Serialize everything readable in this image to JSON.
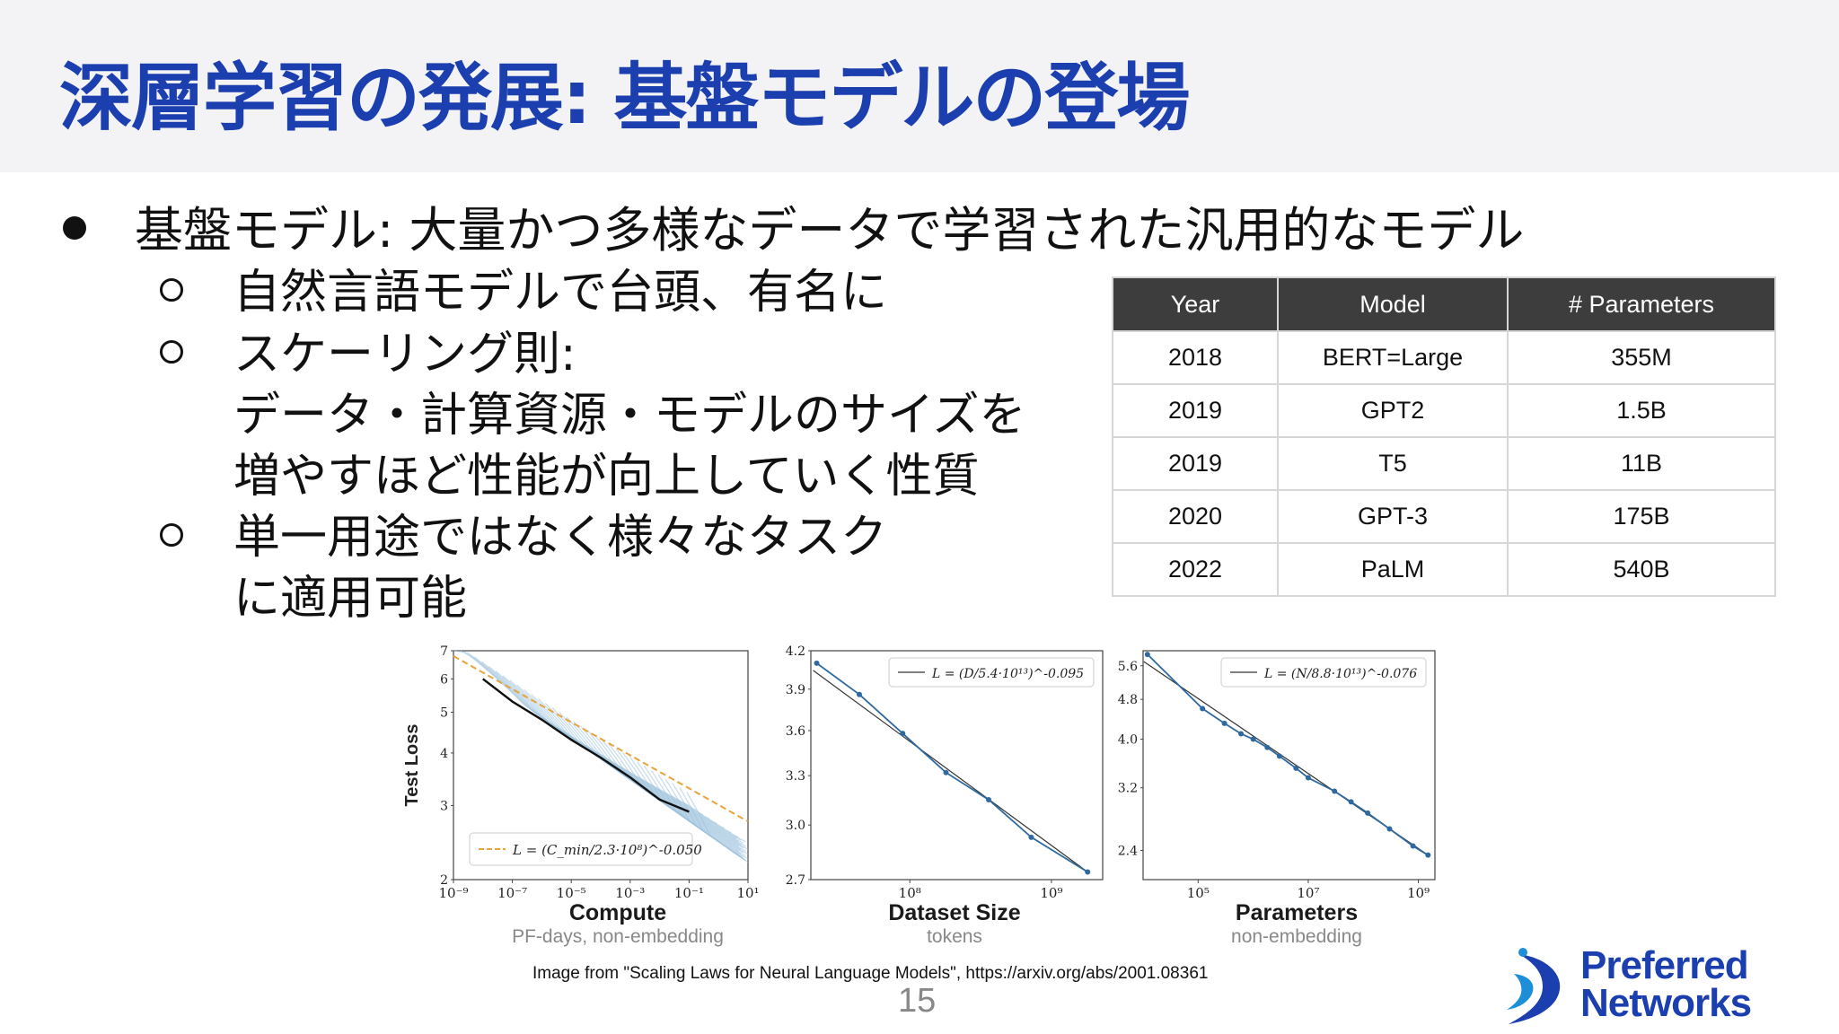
{
  "title": "深層学習の発展: 基盤モデルの登場",
  "bullets": {
    "main": "基盤モデル: 大量かつ多様なデータで学習された汎用的なモデル",
    "sub1": "自然言語モデルで台頭、有名に",
    "sub2_line1": "スケーリング則:",
    "sub2_line2": "データ・計算資源・モデルのサイズを",
    "sub2_line3": "増やすほど性能が向上していく性質",
    "sub3_line1": "単一用途ではなく様々なタスク",
    "sub3_line2": "に適用可能"
  },
  "table": {
    "headers": [
      "Year",
      "Model",
      "# Parameters"
    ],
    "rows": [
      [
        "2018",
        "BERT=Large",
        "355M"
      ],
      [
        "2019",
        "GPT2",
        "1.5B"
      ],
      [
        "2019",
        "T5",
        "11B"
      ],
      [
        "2020",
        "GPT-3",
        "175B"
      ],
      [
        "2022",
        "PaLM",
        "540B"
      ]
    ]
  },
  "chart_data": [
    {
      "type": "line",
      "title": "",
      "xlabel": "Compute",
      "xsublabel": "PF-days, non-embedding",
      "ylabel": "Test Loss",
      "xscale": "log",
      "yscale": "log",
      "xlim": [
        1e-09,
        10
      ],
      "ylim": [
        2,
        7
      ],
      "xticks": [
        "10⁻⁹",
        "10⁻⁷",
        "10⁻⁵",
        "10⁻³",
        "10⁻¹",
        "10¹"
      ],
      "yticks": [
        "2",
        "3",
        "4",
        "5",
        "6",
        "7"
      ],
      "legend": "L = (C_min/2.3·10⁸)^-0.050",
      "legend_position": "bottom-left",
      "series": [
        {
          "role": "frontier",
          "x": [
            1e-08,
            1e-07,
            1e-06,
            1e-05,
            0.0001,
            0.001,
            0.01,
            0.1
          ],
          "y": [
            6.0,
            5.3,
            4.8,
            4.3,
            3.9,
            3.5,
            3.1,
            2.9
          ]
        },
        {
          "role": "fit",
          "x": [
            1e-09,
            10
          ],
          "y": [
            6.8,
            2.75
          ]
        }
      ],
      "colors": {
        "frontier": "#111111",
        "fit": "#e8a33a",
        "curves": "#9fc2dc"
      }
    },
    {
      "type": "line",
      "title": "",
      "xlabel": "Dataset Size",
      "xsublabel": "tokens",
      "xscale": "log",
      "yscale": "log",
      "xlim": [
        20000000.0,
        2300000000.0
      ],
      "ylim": [
        2.7,
        4.2
      ],
      "xticks": [
        "10⁸",
        "10⁹"
      ],
      "yticks": [
        "2.7",
        "3.0",
        "3.3",
        "3.6",
        "3.9",
        "4.2"
      ],
      "legend": "L = (D/5.4·10¹³)^-0.095",
      "legend_position": "top-right",
      "series": [
        {
          "role": "points",
          "x": [
            22000000.0,
            44000000.0,
            89000000.0,
            180000000.0,
            360000000.0,
            720000000.0,
            1800000000.0
          ],
          "y": [
            4.1,
            3.86,
            3.58,
            3.32,
            3.15,
            2.93,
            2.74
          ]
        }
      ],
      "colors": {
        "points": "#2e6aa0",
        "fit": "#333333"
      }
    },
    {
      "type": "line",
      "title": "",
      "xlabel": "Parameters",
      "xsublabel": "non-embedding",
      "xscale": "log",
      "yscale": "log",
      "xlim": [
        10000.0,
        2000000000.0
      ],
      "ylim": [
        2.1,
        6.0
      ],
      "xticks": [
        "10⁵",
        "10⁷",
        "10⁹"
      ],
      "yticks": [
        "2.4",
        "3.2",
        "4.0",
        "4.8",
        "5.6"
      ],
      "legend": "L = (N/8.8·10¹³)^-0.076",
      "legend_position": "top-right",
      "series": [
        {
          "role": "points",
          "x": [
            12000.0,
            120000.0,
            300000.0,
            600000.0,
            1000000.0,
            1800000.0,
            3000000.0,
            6000000.0,
            10000000.0,
            30000000.0,
            60000000.0,
            120000000.0,
            300000000.0,
            800000000.0,
            1500000000.0
          ],
          "y": [
            5.9,
            4.6,
            4.3,
            4.1,
            4.0,
            3.85,
            3.7,
            3.5,
            3.35,
            3.15,
            3.0,
            2.85,
            2.65,
            2.45,
            2.35
          ]
        }
      ],
      "colors": {
        "points": "#2e6aa0",
        "fit": "#333333"
      }
    }
  ],
  "citation": "Image from \"Scaling Laws for Neural Language Models\", https://arxiv.org/abs/2001.08361",
  "page_number": "15",
  "logo": {
    "line1": "Preferred",
    "line2": "Networks"
  }
}
